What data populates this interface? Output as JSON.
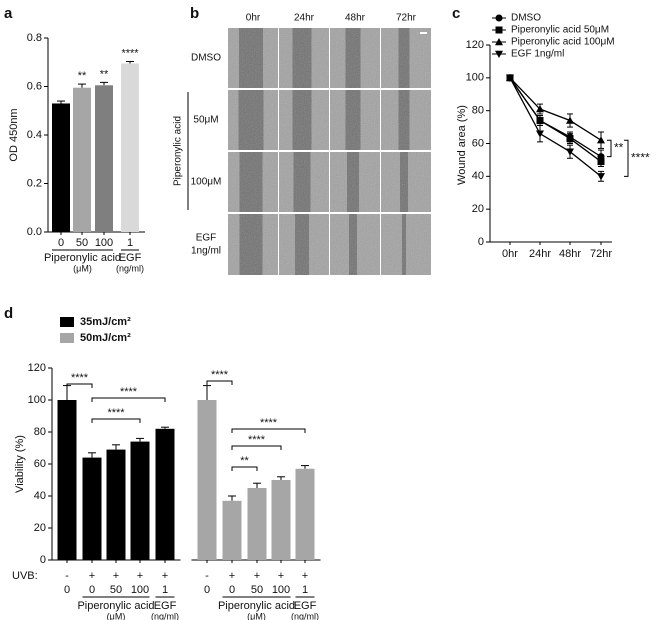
{
  "chart_data": [
    {
      "panel": "a",
      "type": "bar",
      "categories": [
        "0",
        "50",
        "100",
        "1"
      ],
      "values": [
        0.53,
        0.595,
        0.605,
        0.695
      ],
      "errors": [
        0.01,
        0.015,
        0.012,
        0.008
      ],
      "colors": [
        "#000000",
        "#a6a6a6",
        "#7f7f7f",
        "#d9d9d9"
      ],
      "significance": [
        null,
        "**",
        "**",
        "****"
      ],
      "ylabel": "OD 450nm",
      "ylim": [
        0,
        0.8
      ],
      "yticks": [
        {
          "value": 0,
          "label": "0.0"
        },
        0.2,
        0.4,
        0.6,
        0.8
      ],
      "groups": [
        {
          "label": "Piperonylic acid",
          "unit": "(μM)",
          "span": [
            0,
            2
          ]
        },
        {
          "label": "EGF",
          "unit": "(ng/ml)",
          "span": [
            3,
            3
          ]
        }
      ]
    },
    {
      "panel": "c",
      "type": "line",
      "categories": [
        "0hr",
        "24hr",
        "48hr",
        "72hr"
      ],
      "ylabel": "Wound area (%)",
      "ylim": [
        0,
        120
      ],
      "yticks": [
        0,
        20,
        40,
        60,
        80,
        100,
        120
      ],
      "legend": "top-left",
      "series": [
        {
          "name": "DMSO",
          "marker": "circle",
          "color": "#000000",
          "values": [
            100,
            74,
            64,
            52
          ],
          "errors": [
            0,
            3,
            3,
            4
          ]
        },
        {
          "name": "Piperonylic acid 50μM",
          "marker": "square",
          "color": "#000000",
          "values": [
            100,
            74,
            63,
            49
          ],
          "errors": [
            0,
            3,
            3,
            3
          ]
        },
        {
          "name": "Piperonylic acid 100μM",
          "marker": "triangle-up",
          "color": "#000000",
          "values": [
            100,
            81,
            74,
            62
          ],
          "errors": [
            0,
            3,
            4,
            5
          ]
        },
        {
          "name": "EGF 1ng/ml",
          "marker": "triangle-down",
          "color": "#000000",
          "values": [
            100,
            66,
            55,
            40
          ],
          "errors": [
            0,
            5,
            4,
            3
          ]
        }
      ],
      "comparisons": [
        {
          "series": [
            2,
            0
          ],
          "label": "**"
        },
        {
          "series": [
            2,
            3
          ],
          "label": "****"
        }
      ]
    },
    {
      "panel": "d",
      "type": "bar",
      "categories": [
        "0",
        "0",
        "50",
        "100",
        "1"
      ],
      "uvb_label": "UVB:",
      "uvb": [
        "-",
        "+",
        "+",
        "+",
        "+"
      ],
      "ylabel": "Viability (%)",
      "ylim": [
        0,
        120
      ],
      "yticks": [
        0,
        20,
        40,
        60,
        80,
        100,
        120
      ],
      "legend": "top-left",
      "series": [
        {
          "name": "35mJ/cm²",
          "color": "#000000",
          "values": [
            100,
            64,
            69,
            74,
            82
          ],
          "errors": [
            9,
            3,
            3,
            2,
            1
          ],
          "comparisons": [
            {
              "pair": [
                0,
                1
              ],
              "label": "****"
            },
            {
              "pair": [
                1,
                4
              ],
              "label": "****"
            },
            {
              "pair": [
                1,
                3
              ],
              "label": "****"
            }
          ]
        },
        {
          "name": "50mJ/cm²",
          "color": "#a6a6a6",
          "values": [
            100,
            37,
            45,
            50,
            57
          ],
          "errors": [
            9,
            3,
            3,
            2,
            2
          ],
          "comparisons": [
            {
              "pair": [
                0,
                1
              ],
              "label": "****"
            },
            {
              "pair": [
                1,
                4
              ],
              "label": "****"
            },
            {
              "pair": [
                1,
                3
              ],
              "label": "****"
            },
            {
              "pair": [
                1,
                2
              ],
              "label": "**"
            }
          ]
        }
      ],
      "groups": [
        {
          "label": "Piperonylic acid",
          "unit": "(μM)",
          "span": [
            1,
            3
          ]
        },
        {
          "label": "EGF",
          "unit": "(ng/ml)",
          "span": [
            4,
            4
          ]
        }
      ]
    }
  ],
  "image_panel": {
    "panel": "b",
    "columns": [
      "0hr",
      "24hr",
      "48hr",
      "72hr"
    ],
    "rows": [
      [
        "DMSO"
      ],
      [
        "50μM"
      ],
      [
        "100μM"
      ],
      [
        "EGF",
        "1ng/ml"
      ]
    ],
    "row_group": {
      "label": "Piperonylic acid",
      "span": [
        1,
        2
      ]
    }
  }
}
